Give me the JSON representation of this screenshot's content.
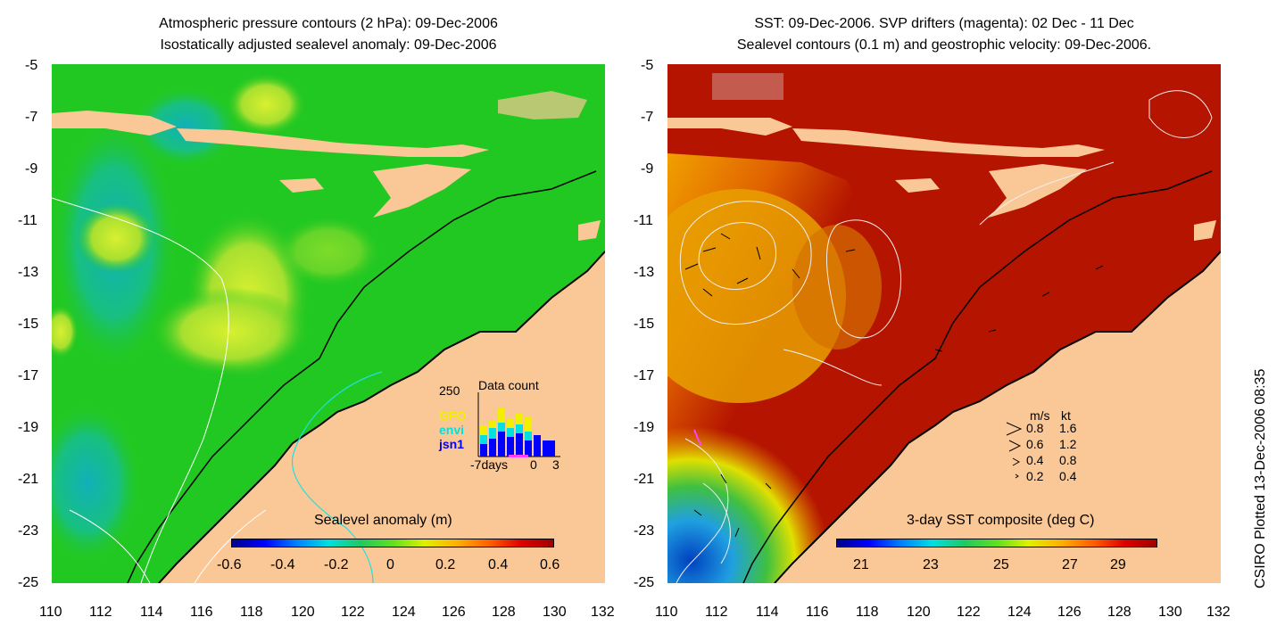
{
  "left_panel": {
    "title_line1": "Atmospheric pressure contours (2 hPa): 09-Dec-2006",
    "title_line2": "Isostatically adjusted sealevel anomaly: 09-Dec-2006",
    "colorbar_title": "Sealevel anomaly (m)",
    "colorbar_ticks": [
      "-0.6",
      "-0.4",
      "-0.2",
      "0",
      "0.2",
      "0.4",
      "0.6"
    ],
    "inset": {
      "value_label": "250",
      "title": "Data count",
      "legend": [
        {
          "name": "GFO",
          "color": "#f0f000"
        },
        {
          "name": "envi",
          "color": "#00e0e0"
        },
        {
          "name": "jsn1",
          "color": "#0000ff"
        }
      ],
      "x_labels": [
        "-7days",
        "0",
        "3"
      ]
    }
  },
  "right_panel": {
    "title_line1": "SST: 09-Dec-2006. SVP drifters (magenta): 02 Dec - 11 Dec",
    "title_line2": "Sealevel contours (0.1 m) and geostrophic velocity: 09-Dec-2006.",
    "colorbar_title": "3-day SST composite (deg C)",
    "colorbar_ticks": [
      "21",
      "23",
      "25",
      "27",
      "29"
    ],
    "velocity_legend": {
      "header": [
        "m/s",
        "kt"
      ],
      "rows": [
        [
          "0.8",
          "1.6"
        ],
        [
          "0.6",
          "1.2"
        ],
        [
          "0.4",
          "0.8"
        ],
        [
          "0.2",
          "0.4"
        ]
      ]
    }
  },
  "axes": {
    "y_ticks": [
      "-5",
      "-7",
      "-9",
      "-11",
      "-13",
      "-15",
      "-17",
      "-19",
      "-21",
      "-23",
      "-25"
    ],
    "x_ticks": [
      "110",
      "112",
      "114",
      "116",
      "118",
      "120",
      "122",
      "124",
      "126",
      "128",
      "130",
      "132"
    ]
  },
  "credit": "CSIRO Plotted 13-Dec-2006 08:35",
  "colors": {
    "land": "#fac896",
    "sla_background": "#22c822",
    "sst_background": "#b41400"
  }
}
